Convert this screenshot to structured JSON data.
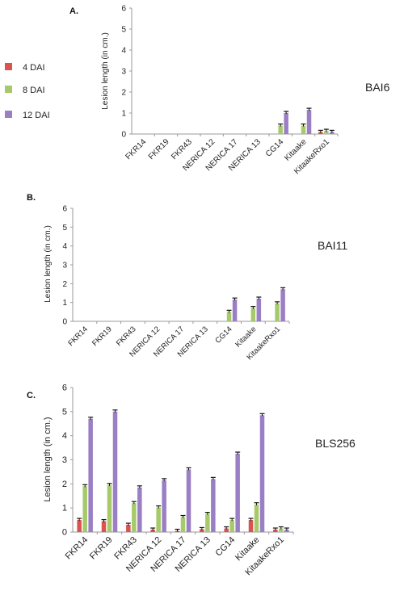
{
  "legend": [
    {
      "label": "4 DAI",
      "color": "#d9534f"
    },
    {
      "label": "8 DAI",
      "color": "#a6c96a"
    },
    {
      "label": "12 DAI",
      "color": "#9b7fc4"
    }
  ],
  "chart_data": [
    {
      "type": "bar",
      "panel_label": "A.",
      "strain": "BAI6",
      "ylabel": "Lesion length (in cm.)",
      "ylim": [
        0,
        6
      ],
      "yticks": [
        "0",
        "1",
        "2",
        "3",
        "4",
        "5",
        "6"
      ],
      "categories": [
        "FKR14",
        "FKR19",
        "FKR43",
        "NERICA 12",
        "NERICA 17",
        "NERICA 13",
        "CG14",
        "Kitaake",
        "KitaakeRxo1"
      ],
      "series": [
        {
          "name": "4 DAI",
          "values": [
            0,
            0,
            0,
            0,
            0,
            0,
            0,
            0,
            0.1
          ]
        },
        {
          "name": "8 DAI",
          "values": [
            0,
            0,
            0,
            0,
            0,
            0,
            0.4,
            0.4,
            0.15
          ]
        },
        {
          "name": "12 DAI",
          "values": [
            0,
            0,
            0,
            0,
            0,
            0,
            1.0,
            1.15,
            0.1
          ]
        }
      ]
    },
    {
      "type": "bar",
      "panel_label": "B.",
      "strain": "BAI11",
      "ylabel": "Lesion length (in cm.)",
      "ylim": [
        0,
        6
      ],
      "yticks": [
        "0",
        "1",
        "2",
        "3",
        "4",
        "5",
        "6"
      ],
      "categories": [
        "FKR14",
        "FKR19",
        "FKR43",
        "NERICA 12",
        "NERICA 17",
        "NERICA 13",
        "CG14",
        "Kitaake",
        "KitaakeRxo1"
      ],
      "series": [
        {
          "name": "4 DAI",
          "values": [
            0,
            0,
            0,
            0,
            0,
            0,
            0,
            0,
            0
          ]
        },
        {
          "name": "8 DAI",
          "values": [
            0,
            0,
            0,
            0,
            0,
            0,
            0.5,
            0.7,
            0.95
          ]
        },
        {
          "name": "12 DAI",
          "values": [
            0,
            0,
            0,
            0,
            0,
            0,
            1.15,
            1.2,
            1.7
          ]
        }
      ]
    },
    {
      "type": "bar",
      "panel_label": "C.",
      "strain": "BLS256",
      "ylabel": "Lesion length (in cm.)",
      "ylim": [
        0,
        6
      ],
      "yticks": [
        "0",
        "1",
        "2",
        "3",
        "4",
        "5",
        "6"
      ],
      "categories": [
        "FKR14",
        "FKR19",
        "FKR43",
        "NERICA 12",
        "NERICA 17",
        "NERICA 13",
        "CG14",
        "Kitaake",
        "KitaakeRxo1"
      ],
      "series": [
        {
          "name": "4 DAI",
          "values": [
            0.5,
            0.45,
            0.3,
            0.1,
            0.05,
            0.12,
            0.15,
            0.5,
            0.1
          ]
        },
        {
          "name": "8 DAI",
          "values": [
            1.9,
            1.95,
            1.2,
            1.02,
            0.62,
            0.75,
            0.5,
            1.15,
            0.15
          ]
        },
        {
          "name": "12 DAI",
          "values": [
            4.7,
            5.0,
            1.85,
            2.15,
            2.6,
            2.2,
            3.25,
            4.85,
            0.1
          ]
        }
      ]
    }
  ]
}
